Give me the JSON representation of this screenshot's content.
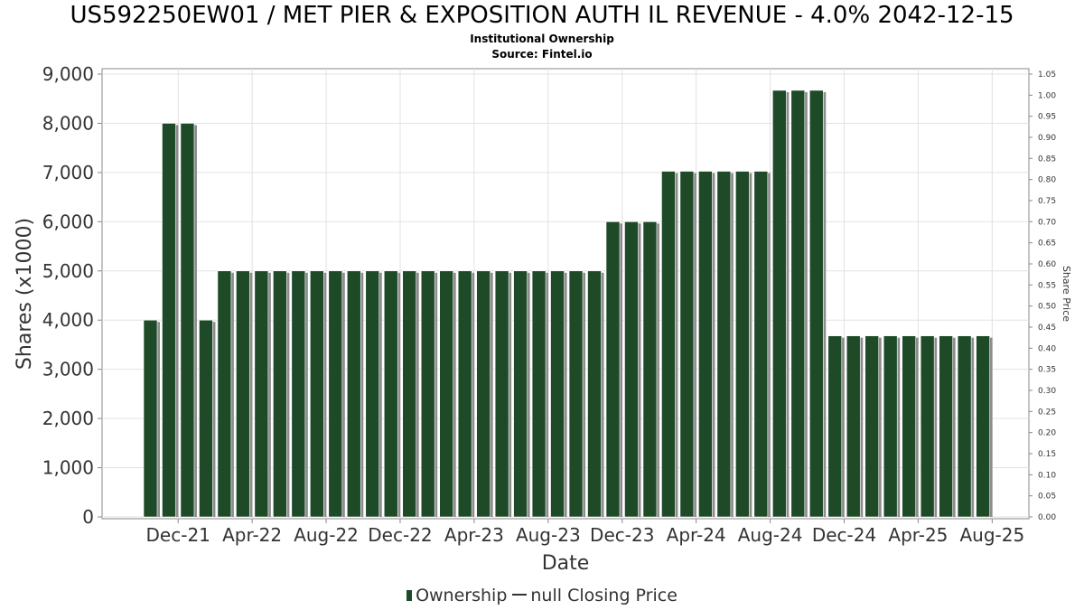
{
  "chart_data": {
    "type": "bar",
    "title": "US592250EW01 / MET PIER & EXPOSITION AUTH IL REVENUE - 4.0% 2042-12-15",
    "subtitle_lines": [
      "Institutional Ownership",
      "Source: Fintel.io"
    ],
    "xlabel": "Date",
    "ylabel": "Shares (x1000)",
    "y2label": "Share Price",
    "ylim": [
      0,
      9000
    ],
    "y2lim": [
      0,
      1.05
    ],
    "y_ticks": [
      "0",
      "1,000",
      "2,000",
      "3,000",
      "4,000",
      "5,000",
      "6,000",
      "7,000",
      "8,000",
      "9,000"
    ],
    "y2_ticks": [
      "0.00",
      "0.05",
      "0.10",
      "0.15",
      "0.20",
      "0.25",
      "0.30",
      "0.35",
      "0.40",
      "0.45",
      "0.50",
      "0.55",
      "0.60",
      "0.65",
      "0.70",
      "0.75",
      "0.80",
      "0.85",
      "0.90",
      "0.95",
      "1.00",
      "1.05"
    ],
    "x_tick_labels": [
      "Dec-21",
      "Apr-22",
      "Aug-22",
      "Dec-22",
      "Apr-23",
      "Aug-23",
      "Dec-23",
      "Apr-24",
      "Aug-24",
      "Dec-24",
      "Apr-25",
      "Aug-25"
    ],
    "x_tick_bar_index": [
      1.5,
      5.5,
      9.5,
      13.5,
      17.5,
      21.5,
      25.5,
      29.5,
      33.5,
      37.5,
      41.5,
      45.5
    ],
    "series": [
      {
        "name": "Ownership",
        "color": "#1e4a28",
        "values": [
          4000,
          8000,
          8000,
          4000,
          5000,
          5000,
          5000,
          5000,
          5000,
          5000,
          5000,
          5000,
          5000,
          5000,
          5000,
          5000,
          5000,
          5000,
          5000,
          5000,
          5000,
          5000,
          5000,
          5000,
          5000,
          6000,
          6000,
          6000,
          7025,
          7025,
          7025,
          7025,
          7025,
          7025,
          8670,
          8670,
          8670,
          3680,
          3680,
          3680,
          3680,
          3680,
          3680,
          3680,
          3680,
          3680
        ]
      }
    ],
    "legend": {
      "placement": "bottom-center",
      "ownership_label": "Ownership",
      "price_label": "null Closing Price"
    },
    "grid": true
  }
}
